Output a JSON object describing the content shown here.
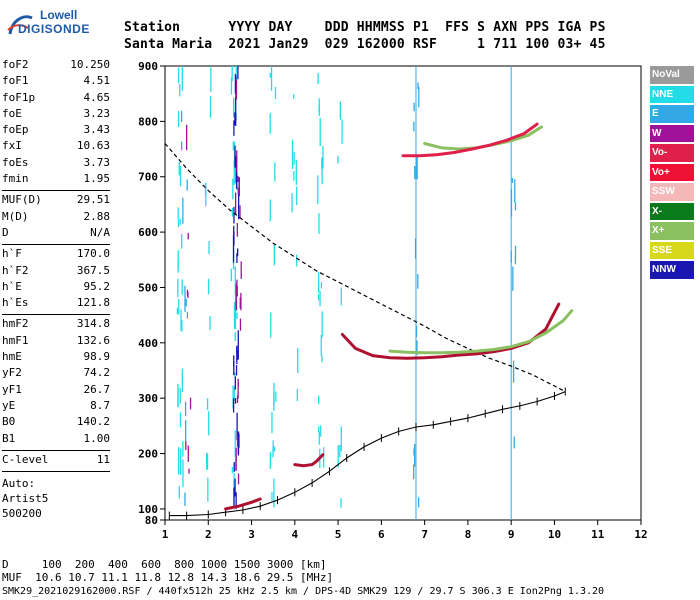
{
  "logo": {
    "top": "Lowell",
    "bottom": "DIGISONDE"
  },
  "header": {
    "line1": "Station      YYYY DAY    DDD HHMMSS P1  FFS S AXN PPS IGA PS",
    "line2": "Santa Maria  2021 Jan29  029 162000 RSF     1 711 100 03+ 45"
  },
  "params": {
    "group1": [
      {
        "k": "foF2",
        "v": "10.250"
      },
      {
        "k": "foF1",
        "v": "4.51"
      },
      {
        "k": "foF1p",
        "v": "4.65"
      },
      {
        "k": "foE",
        "v": "3.23"
      },
      {
        "k": "foEp",
        "v": "3.43"
      },
      {
        "k": "fxI",
        "v": "10.63"
      },
      {
        "k": "foEs",
        "v": "3.73"
      },
      {
        "k": "fmin",
        "v": "1.95"
      }
    ],
    "group2": [
      {
        "k": "MUF(D)",
        "v": "29.51"
      },
      {
        "k": "M(D)",
        "v": "2.88"
      },
      {
        "k": "D",
        "v": "N/A"
      }
    ],
    "group3": [
      {
        "k": "h`F",
        "v": "170.0"
      },
      {
        "k": "h`F2",
        "v": "367.5"
      },
      {
        "k": "h`E",
        "v": "95.2"
      },
      {
        "k": "h`Es",
        "v": "121.8"
      }
    ],
    "group4": [
      {
        "k": "hmF2",
        "v": "314.8"
      },
      {
        "k": "hmF1",
        "v": "132.6"
      },
      {
        "k": "hmE",
        "v": "98.9"
      },
      {
        "k": "yF2",
        "v": "74.2"
      },
      {
        "k": "yF1",
        "v": "26.7"
      },
      {
        "k": "yE",
        "v": "8.7"
      },
      {
        "k": "B0",
        "v": "140.2"
      },
      {
        "k": "B1",
        "v": "1.00"
      }
    ],
    "group5": [
      {
        "k": "C-level",
        "v": "11"
      }
    ],
    "auto": [
      "Auto:",
      "Artist5",
      "500200"
    ]
  },
  "legend": [
    {
      "label": "NoVal",
      "color": "#9a9a9a"
    },
    {
      "label": "NNE",
      "color": "#22dde8"
    },
    {
      "label": "E",
      "color": "#33a8e6"
    },
    {
      "label": "W",
      "color": "#a0119a"
    },
    {
      "label": "Vo-",
      "color": "#e0204a"
    },
    {
      "label": "Vo+",
      "color": "#ee1133"
    },
    {
      "label": "SSW",
      "color": "#f4b8b8"
    },
    {
      "label": "X-",
      "color": "#0a7a1a"
    },
    {
      "label": "X+",
      "color": "#8ac060"
    },
    {
      "label": "SSE",
      "color": "#d8d81a"
    },
    {
      "label": "NNW",
      "color": "#1a16b0"
    }
  ],
  "footer": {
    "line1": "D     100  200  400  600  800 1000 1500 3000 [km]",
    "line2": "MUF  10.6 10.7 11.1 11.8 12.8 14.3 18.6 29.5 [MHz]",
    "line3": "SMK29_2021029162000.RSF / 440fx512h 25 kHz 2.5 km / DPS-4D SMK29 129 / 29.7 S 306.3 E Ion2Png 1.3.20"
  },
  "chart_data": {
    "type": "scatter",
    "xlim": [
      1,
      12
    ],
    "ylim": [
      80,
      900
    ],
    "xticks": [
      1,
      2,
      3,
      4,
      5,
      6,
      7,
      8,
      9,
      10,
      11,
      12
    ],
    "yticks": [
      80,
      100,
      200,
      300,
      400,
      500,
      600,
      700,
      800,
      900
    ],
    "vlines": [
      6.8,
      9.0
    ],
    "series": [
      {
        "kind": "profile_dashed",
        "color": "#000000",
        "x": [
          1.0,
          1.5,
          2.0,
          2.5,
          3.0,
          3.5,
          4.0,
          4.5,
          5.0,
          5.5,
          6.0,
          6.5,
          7.0,
          7.5,
          8.0,
          8.5,
          9.0,
          9.5,
          9.8,
          10.0,
          10.15,
          10.25
        ],
        "y": [
          760,
          715,
          675,
          640,
          610,
          580,
          555,
          530,
          510,
          490,
          470,
          450,
          430,
          408,
          390,
          372,
          358,
          342,
          330,
          322,
          316,
          312
        ]
      },
      {
        "kind": "profile_ticks",
        "color": "#000000",
        "x": [
          1.1,
          1.5,
          2.0,
          2.4,
          2.8,
          3.2,
          3.6,
          4.0,
          4.4,
          4.8,
          5.2,
          5.6,
          6.0,
          6.4,
          6.8,
          7.2,
          7.6,
          8.0,
          8.4,
          8.8,
          9.2,
          9.6,
          10.0,
          10.25
        ],
        "y": [
          88,
          88,
          90,
          94,
          98,
          105,
          116,
          130,
          147,
          168,
          192,
          212,
          228,
          240,
          248,
          252,
          258,
          264,
          272,
          280,
          286,
          294,
          304,
          312
        ]
      },
      {
        "kind": "trace",
        "color": "#b01030",
        "x": [
          5.1,
          5.4,
          5.8,
          6.2,
          6.6,
          7.0,
          7.4,
          7.8,
          8.2,
          8.6,
          9.0,
          9.4,
          9.8,
          10.1
        ],
        "y": [
          415,
          390,
          377,
          373,
          372,
          373,
          375,
          378,
          380,
          384,
          390,
          400,
          425,
          470
        ]
      },
      {
        "kind": "trace_X",
        "color": "#8ac060",
        "x": [
          6.2,
          6.6,
          7.0,
          7.4,
          7.8,
          8.2,
          8.6,
          9.0,
          9.4,
          9.8,
          10.2,
          10.4
        ],
        "y": [
          385,
          383,
          382,
          382,
          383,
          385,
          388,
          393,
          402,
          418,
          440,
          458
        ]
      },
      {
        "kind": "trace_upper_X",
        "color": "#8ac060",
        "x": [
          7.0,
          7.4,
          7.8,
          8.2,
          8.6,
          9.0,
          9.4,
          9.7
        ],
        "y": [
          760,
          752,
          750,
          752,
          758,
          765,
          775,
          790
        ]
      },
      {
        "kind": "trace_upper_O",
        "color": "#e0204a",
        "x": [
          6.5,
          6.9,
          7.3,
          7.7,
          8.1,
          8.5,
          8.9,
          9.3,
          9.6
        ],
        "y": [
          738,
          738,
          740,
          744,
          750,
          757,
          766,
          778,
          795
        ]
      },
      {
        "kind": "trace_Es",
        "color": "#b01030",
        "x": [
          4.0,
          4.2,
          4.4,
          4.5,
          4.65
        ],
        "y": [
          180,
          178,
          180,
          186,
          198
        ]
      },
      {
        "kind": "trace_low",
        "color": "#b01030",
        "x": [
          2.4,
          2.7,
          3.0,
          3.2
        ],
        "y": [
          100,
          105,
          112,
          118
        ]
      }
    ]
  }
}
